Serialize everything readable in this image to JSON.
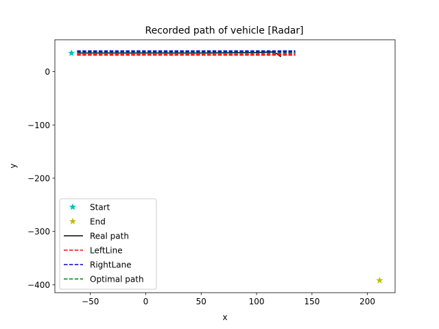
{
  "chart_data": {
    "type": "line",
    "title": "Recorded path of vehicle [Radar]",
    "xlabel": "x",
    "ylabel": "y",
    "xlim": [
      -82,
      225
    ],
    "ylim": [
      -415,
      60
    ],
    "xticks": [
      {
        "value": -50,
        "label": "−50"
      },
      {
        "value": 0,
        "label": "0"
      },
      {
        "value": 50,
        "label": "50"
      },
      {
        "value": 100,
        "label": "100"
      },
      {
        "value": 150,
        "label": "150"
      },
      {
        "value": 200,
        "label": "200"
      }
    ],
    "yticks": [
      {
        "value": 0,
        "label": "0"
      },
      {
        "value": -100,
        "label": "−100"
      },
      {
        "value": -200,
        "label": "−200"
      },
      {
        "value": -300,
        "label": "−300"
      },
      {
        "value": -400,
        "label": "−400"
      }
    ],
    "grid": false,
    "legend_position": "lower-left",
    "series": [
      {
        "name": "Start",
        "kind": "marker",
        "marker": "star",
        "color": "#00bfbf",
        "x": [
          -67
        ],
        "y": [
          35
        ]
      },
      {
        "name": "End",
        "kind": "marker",
        "marker": "star",
        "color": "#bfbf00",
        "x": [
          211
        ],
        "y": [
          -392
        ]
      },
      {
        "name": "Real path",
        "kind": "line",
        "style": "solid",
        "color": "#000000",
        "x": [
          -60,
          0,
          50,
          100,
          115,
          118,
          120,
          122
        ],
        "y": [
          35,
          35,
          35,
          36,
          37,
          34,
          31,
          28
        ]
      },
      {
        "name": "LeftLine",
        "kind": "line",
        "style": "dashed",
        "color": "#ff0000",
        "x": [
          -62,
          135
        ],
        "y": [
          31,
          31
        ]
      },
      {
        "name": "LeftLine",
        "kind": "line",
        "style": "dashed",
        "color": "#ff0000",
        "x": [
          -62,
          135
        ],
        "y": [
          33,
          33
        ]
      },
      {
        "name": "RightLane",
        "kind": "line",
        "style": "dashed",
        "color": "#0000cc",
        "x": [
          -62,
          135
        ],
        "y": [
          37,
          37
        ]
      },
      {
        "name": "RightLane",
        "kind": "line",
        "style": "dashed",
        "color": "#0000cc",
        "x": [
          -62,
          135
        ],
        "y": [
          39,
          39
        ]
      },
      {
        "name": "Optimal path",
        "kind": "line",
        "style": "dashed",
        "color": "#008000",
        "x": [
          -62,
          135
        ],
        "y": [
          35,
          35
        ]
      }
    ],
    "legend": [
      {
        "label": "Start",
        "kind": "marker",
        "color": "#00bfbf"
      },
      {
        "label": "End",
        "kind": "marker",
        "color": "#bfbf00"
      },
      {
        "label": "Real path",
        "kind": "solid",
        "color": "#000000"
      },
      {
        "label": "LeftLine",
        "kind": "dashed",
        "color": "#ff0000"
      },
      {
        "label": "RightLane",
        "kind": "dashed",
        "color": "#0000cc"
      },
      {
        "label": "Optimal path",
        "kind": "dashed",
        "color": "#008000"
      }
    ]
  }
}
